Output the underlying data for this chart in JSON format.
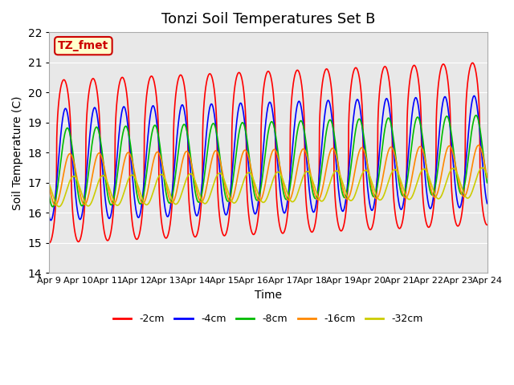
{
  "title": "Tonzi Soil Temperatures Set B",
  "xlabel": "Time",
  "ylabel": "Soil Temperature (C)",
  "ylim": [
    14.0,
    22.0
  ],
  "yticks": [
    14.0,
    15.0,
    16.0,
    17.0,
    18.0,
    19.0,
    20.0,
    21.0,
    22.0
  ],
  "bg_color": "#e8e8e8",
  "fig_color": "#ffffff",
  "annotation_text": "TZ_fmet",
  "annotation_bg": "#ffffcc",
  "annotation_border": "#cc0000",
  "series": [
    {
      "label": "-2cm",
      "color": "#ff0000",
      "amplitude": 2.7,
      "phase": 0.0,
      "mean": 17.7,
      "mean_slope": 0.04,
      "sharpness": 2.5
    },
    {
      "label": "-4cm",
      "color": "#0000ff",
      "amplitude": 1.85,
      "phase": 0.35,
      "mean": 17.6,
      "mean_slope": 0.03,
      "sharpness": 1.0
    },
    {
      "label": "-8cm",
      "color": "#00bb00",
      "amplitude": 1.3,
      "phase": 0.75,
      "mean": 17.5,
      "mean_slope": 0.03,
      "sharpness": 1.0
    },
    {
      "label": "-16cm",
      "color": "#ff8800",
      "amplitude": 0.85,
      "phase": 1.3,
      "mean": 17.1,
      "mean_slope": 0.02,
      "sharpness": 1.0
    },
    {
      "label": "-32cm",
      "color": "#cccc00",
      "amplitude": 0.5,
      "phase": 2.1,
      "mean": 16.7,
      "mean_slope": 0.02,
      "sharpness": 1.0
    }
  ],
  "n_days": 15,
  "points_per_day": 288,
  "xtick_labels": [
    "Apr 9",
    "Apr 10",
    "Apr 11",
    "Apr 12",
    "Apr 13",
    "Apr 14",
    "Apr 15",
    "Apr 16",
    "Apr 17",
    "Apr 18",
    "Apr 19",
    "Apr 20",
    "Apr 21",
    "Apr 22",
    "Apr 23",
    "Apr 24"
  ]
}
